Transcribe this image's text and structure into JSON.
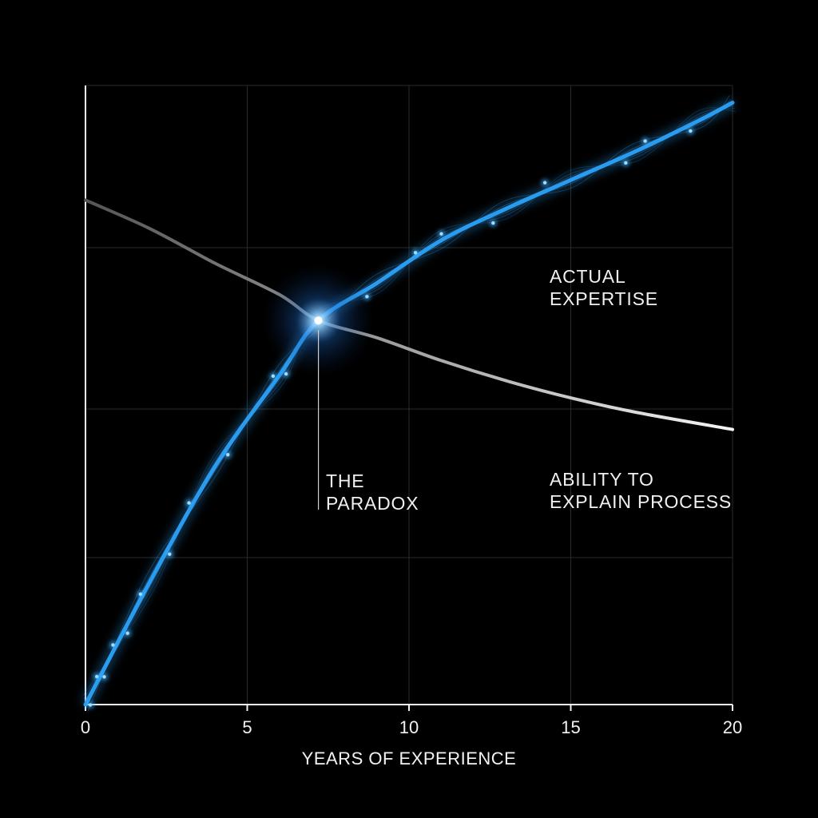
{
  "chart_data": {
    "type": "line",
    "title": "",
    "xlabel": "YEARS OF EXPERIENCE",
    "ylabel": "",
    "xlim": [
      0,
      20
    ],
    "x_ticks": [
      0,
      5,
      10,
      15,
      20
    ],
    "grid": true,
    "series": [
      {
        "name": "ACTUAL EXPERTISE",
        "color": "#2a9cf0",
        "x": [
          0,
          2,
          4,
          6,
          7.2,
          9,
          11,
          13,
          15,
          17,
          19,
          20
        ],
        "y": [
          0,
          21.5,
          41.5,
          57.5,
          67,
          73.5,
          81,
          86.5,
          91.5,
          96.5,
          102,
          105
        ]
      },
      {
        "name": "ABILITY TO EXPLAIN PROCESS",
        "color": "#d8d8d8",
        "x": [
          0,
          2,
          4,
          6,
          7.2,
          9,
          11,
          13,
          15,
          17,
          20
        ],
        "y": [
          88,
          83,
          77,
          71.5,
          67,
          64,
          60,
          56.5,
          53.5,
          51,
          48
        ]
      }
    ],
    "annotations": [
      {
        "label": "THE PARADOX",
        "x": 7.2,
        "y": 67
      }
    ]
  },
  "labels": {
    "series_a_line1": "ACTUAL",
    "series_a_line2": "EXPERTISE",
    "series_b_line1": "ABILITY TO",
    "series_b_line2": "EXPLAIN PROCESS",
    "paradox_line1": "THE",
    "paradox_line2": "PARADOX"
  }
}
